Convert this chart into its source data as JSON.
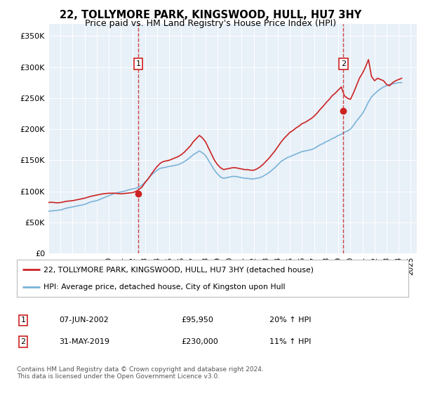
{
  "title": "22, TOLLYMORE PARK, KINGSWOOD, HULL, HU7 3HY",
  "subtitle": "Price paid vs. HM Land Registry's House Price Index (HPI)",
  "bg_color": "#e8f0f8",
  "red_label": "22, TOLLYMORE PARK, KINGSWOOD, HULL, HU7 3HY (detached house)",
  "blue_label": "HPI: Average price, detached house, City of Kingston upon Hull",
  "footnote": "Contains HM Land Registry data © Crown copyright and database right 2024.\nThis data is licensed under the Open Government Licence v3.0.",
  "annotation1_date": "07-JUN-2002",
  "annotation1_price": "£95,950",
  "annotation1_hpi": "20% ↑ HPI",
  "annotation2_date": "31-MAY-2019",
  "annotation2_price": "£230,000",
  "annotation2_hpi": "11% ↑ HPI",
  "ylim": [
    0,
    370000
  ],
  "yticks": [
    0,
    50000,
    100000,
    150000,
    200000,
    250000,
    300000,
    350000
  ],
  "ytick_labels": [
    "£0",
    "£50K",
    "£100K",
    "£150K",
    "£200K",
    "£250K",
    "£300K",
    "£350K"
  ],
  "vline1_x": 2002.44,
  "vline2_x": 2019.42,
  "dot1_x": 2002.44,
  "dot1_y": 95950,
  "dot2_x": 2019.42,
  "dot2_y": 230000,
  "hpi_x": [
    1995,
    1995.25,
    1995.5,
    1995.75,
    1996,
    1996.25,
    1996.5,
    1996.75,
    1997,
    1997.25,
    1997.5,
    1997.75,
    1998,
    1998.25,
    1998.5,
    1998.75,
    1999,
    1999.25,
    1999.5,
    1999.75,
    2000,
    2000.25,
    2000.5,
    2000.75,
    2001,
    2001.25,
    2001.5,
    2001.75,
    2002,
    2002.25,
    2002.5,
    2002.75,
    2003,
    2003.25,
    2003.5,
    2003.75,
    2004,
    2004.25,
    2004.5,
    2004.75,
    2005,
    2005.25,
    2005.5,
    2005.75,
    2006,
    2006.25,
    2006.5,
    2006.75,
    2007,
    2007.25,
    2007.5,
    2007.75,
    2008,
    2008.25,
    2008.5,
    2008.75,
    2009,
    2009.25,
    2009.5,
    2009.75,
    2010,
    2010.25,
    2010.5,
    2010.75,
    2011,
    2011.25,
    2011.5,
    2011.75,
    2012,
    2012.25,
    2012.5,
    2012.75,
    2013,
    2013.25,
    2013.5,
    2013.75,
    2014,
    2014.25,
    2014.5,
    2014.75,
    2015,
    2015.25,
    2015.5,
    2015.75,
    2016,
    2016.25,
    2016.5,
    2016.75,
    2017,
    2017.25,
    2017.5,
    2017.75,
    2018,
    2018.25,
    2018.5,
    2018.75,
    2019,
    2019.25,
    2019.5,
    2019.75,
    2020,
    2020.25,
    2020.5,
    2020.75,
    2021,
    2021.25,
    2021.5,
    2021.75,
    2022,
    2022.25,
    2022.5,
    2022.75,
    2023,
    2023.25,
    2023.5,
    2023.75,
    2024,
    2024.25
  ],
  "hpi_y": [
    68000,
    68500,
    69000,
    69500,
    70000,
    71500,
    73000,
    74000,
    75000,
    76000,
    77000,
    78000,
    79000,
    81000,
    83000,
    84000,
    85000,
    87000,
    89000,
    91000,
    93000,
    95000,
    97000,
    98000,
    99000,
    100000,
    101500,
    103000,
    104000,
    105000,
    107000,
    110000,
    115000,
    120000,
    126000,
    130000,
    134000,
    137000,
    138000,
    139000,
    140000,
    141000,
    142000,
    143000,
    145000,
    148000,
    151000,
    155000,
    159000,
    162000,
    165000,
    162000,
    158000,
    150000,
    142000,
    134000,
    128000,
    123000,
    121000,
    122000,
    123000,
    124000,
    124000,
    123000,
    122000,
    121000,
    121000,
    120000,
    120000,
    121000,
    122000,
    124000,
    127000,
    130000,
    134000,
    138000,
    143000,
    148000,
    151000,
    154000,
    156000,
    158000,
    160000,
    162000,
    164000,
    165000,
    166000,
    167000,
    169000,
    172000,
    175000,
    177000,
    180000,
    182000,
    185000,
    187000,
    190000,
    192000,
    195000,
    197000,
    200000,
    206000,
    213000,
    219000,
    225000,
    234000,
    244000,
    252000,
    257000,
    261000,
    265000,
    268000,
    270000,
    272000,
    273000,
    274000,
    275000,
    275000
  ],
  "red_x": [
    1995,
    1995.25,
    1995.5,
    1995.75,
    1996,
    1996.25,
    1996.5,
    1996.75,
    1997,
    1997.25,
    1997.5,
    1997.75,
    1998,
    1998.25,
    1998.5,
    1998.75,
    1999,
    1999.25,
    1999.5,
    1999.75,
    2000,
    2000.25,
    2000.5,
    2000.75,
    2001,
    2001.25,
    2001.5,
    2001.75,
    2002,
    2002.25,
    2002.5,
    2002.75,
    2003,
    2003.25,
    2003.5,
    2003.75,
    2004,
    2004.25,
    2004.5,
    2004.75,
    2005,
    2005.25,
    2005.5,
    2005.75,
    2006,
    2006.25,
    2006.5,
    2006.75,
    2007,
    2007.25,
    2007.5,
    2007.75,
    2008,
    2008.25,
    2008.5,
    2008.75,
    2009,
    2009.25,
    2009.5,
    2009.75,
    2010,
    2010.25,
    2010.5,
    2010.75,
    2011,
    2011.25,
    2011.5,
    2011.75,
    2012,
    2012.25,
    2012.5,
    2012.75,
    2013,
    2013.25,
    2013.5,
    2013.75,
    2014,
    2014.25,
    2014.5,
    2014.75,
    2015,
    2015.25,
    2015.5,
    2015.75,
    2016,
    2016.25,
    2016.5,
    2016.75,
    2017,
    2017.25,
    2017.5,
    2017.75,
    2018,
    2018.25,
    2018.5,
    2018.75,
    2019,
    2019.25,
    2019.5,
    2019.75,
    2020,
    2020.25,
    2020.5,
    2020.75,
    2021,
    2021.25,
    2021.5,
    2021.75,
    2022,
    2022.25,
    2022.5,
    2022.75,
    2023,
    2023.25,
    2023.5,
    2023.75,
    2024,
    2024.25
  ],
  "red_y": [
    82000,
    82500,
    82000,
    81500,
    82000,
    83000,
    84000,
    84500,
    85000,
    86000,
    87000,
    88000,
    89000,
    90500,
    92000,
    93000,
    94000,
    95000,
    96000,
    96500,
    97000,
    97000,
    97000,
    96500,
    96000,
    96500,
    97000,
    97500,
    98000,
    100000,
    103000,
    107000,
    114000,
    120000,
    127000,
    134000,
    140000,
    145000,
    148000,
    149000,
    150000,
    152000,
    154000,
    156000,
    159000,
    163000,
    168000,
    173000,
    180000,
    185000,
    190000,
    186000,
    180000,
    170000,
    160000,
    150000,
    143000,
    138000,
    135000,
    136000,
    137000,
    138000,
    138000,
    137000,
    136000,
    135000,
    135000,
    134000,
    134000,
    136000,
    139000,
    143000,
    148000,
    153000,
    159000,
    165000,
    172000,
    179000,
    185000,
    190000,
    195000,
    198000,
    202000,
    205000,
    209000,
    211000,
    214000,
    217000,
    221000,
    226000,
    232000,
    237000,
    243000,
    248000,
    254000,
    258000,
    263000,
    268000,
    254000,
    250000,
    248000,
    258000,
    270000,
    282000,
    290000,
    300000,
    312000,
    285000,
    278000,
    282000,
    280000,
    278000,
    272000,
    270000,
    275000,
    278000,
    280000,
    282000
  ],
  "xlim": [
    1995,
    2025.5
  ],
  "xticks": [
    1995,
    1996,
    1997,
    1998,
    1999,
    2000,
    2001,
    2002,
    2003,
    2004,
    2005,
    2006,
    2007,
    2008,
    2009,
    2010,
    2011,
    2012,
    2013,
    2014,
    2015,
    2016,
    2017,
    2018,
    2019,
    2020,
    2021,
    2022,
    2023,
    2024,
    2025
  ],
  "figsize": [
    6.0,
    5.6
  ],
  "dpi": 100
}
